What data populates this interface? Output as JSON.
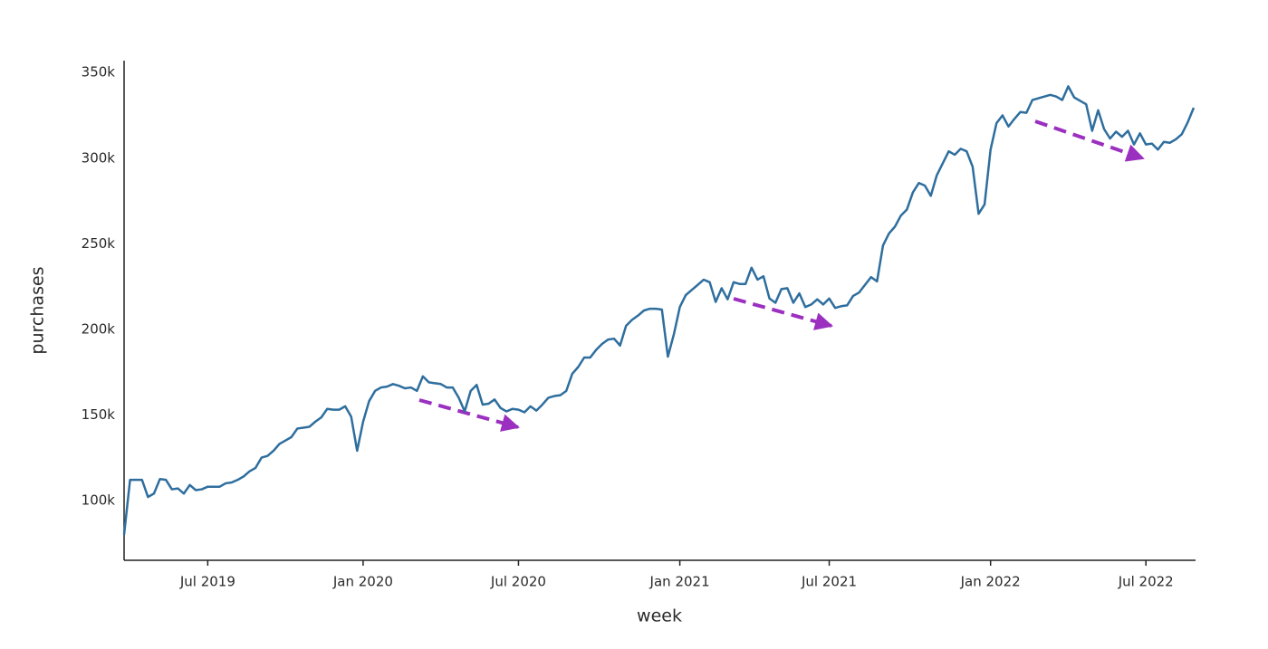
{
  "chart_data": {
    "type": "line",
    "x_label": "week",
    "y_label": "purchases",
    "categories": [
      null,
      null,
      null,
      null,
      null,
      null,
      null,
      null,
      null,
      null,
      null,
      null,
      null,
      null,
      "Jul 2019",
      null,
      null,
      null,
      null,
      null,
      null,
      null,
      null,
      null,
      null,
      null,
      null,
      null,
      null,
      null,
      null,
      null,
      null,
      null,
      null,
      null,
      null,
      null,
      null,
      null,
      "Jan 2020",
      null,
      null,
      null,
      null,
      null,
      null,
      null,
      null,
      null,
      null,
      null,
      null,
      null,
      null,
      null,
      null,
      null,
      null,
      null,
      null,
      null,
      null,
      null,
      null,
      null,
      "Jul 2020",
      null,
      null,
      null,
      null,
      null,
      null,
      null,
      null,
      null,
      null,
      null,
      null,
      null,
      null,
      null,
      null,
      null,
      null,
      null,
      null,
      null,
      null,
      null,
      null,
      null,
      null,
      "Jan 2021",
      null,
      null,
      null,
      null,
      null,
      null,
      null,
      null,
      null,
      null,
      null,
      null,
      null,
      null,
      null,
      null,
      null,
      null,
      null,
      null,
      null,
      null,
      null,
      null,
      "Jul 2021",
      null,
      null,
      null,
      null,
      null,
      null,
      null,
      null,
      null,
      null,
      null,
      null,
      null,
      null,
      null,
      null,
      null,
      null,
      null,
      null,
      null,
      null,
      null,
      null,
      null,
      null,
      "Jan 2022",
      null,
      null,
      null,
      null,
      null,
      null,
      null,
      null,
      null,
      null,
      null,
      null,
      null,
      null,
      null,
      null,
      null,
      null,
      null,
      null,
      null,
      null,
      null,
      null,
      null,
      "Jul 2022",
      null,
      null,
      null,
      null,
      null,
      null,
      null,
      null
    ],
    "values": [
      80000,
      112000,
      112000,
      112000,
      102000,
      104000,
      112500,
      112000,
      106500,
      107000,
      104000,
      109000,
      106000,
      106500,
      108000,
      108000,
      108000,
      110000,
      110500,
      112000,
      114000,
      117000,
      119000,
      125000,
      126000,
      129000,
      133000,
      135000,
      137000,
      142000,
      142500,
      143000,
      146000,
      148500,
      153500,
      153000,
      153000,
      155000,
      149000,
      129000,
      146000,
      158000,
      164000,
      166000,
      166500,
      168000,
      167000,
      165500,
      166000,
      164000,
      172500,
      169000,
      168500,
      168000,
      166000,
      166000,
      160000,
      152000,
      164000,
      167500,
      156000,
      156500,
      159000,
      154000,
      152000,
      153500,
      153000,
      151500,
      155000,
      152500,
      156000,
      160000,
      161000,
      161500,
      164000,
      174000,
      178000,
      183500,
      183500,
      188000,
      191500,
      194000,
      194500,
      190500,
      202000,
      205500,
      208000,
      211000,
      212000,
      212000,
      211500,
      184000,
      197000,
      213000,
      220000,
      223000,
      226000,
      229000,
      227500,
      216000,
      224000,
      217500,
      227500,
      226500,
      226500,
      236000,
      229000,
      231000,
      218000,
      215500,
      223500,
      224000,
      215500,
      221000,
      213000,
      214500,
      217500,
      214500,
      218000,
      212500,
      213500,
      214000,
      219500,
      221500,
      226000,
      230500,
      228000,
      249000,
      256000,
      260000,
      266500,
      270000,
      280000,
      285500,
      284000,
      278000,
      290000,
      297000,
      304000,
      302000,
      305500,
      304000,
      295000,
      267500,
      273000,
      305000,
      320500,
      325000,
      318500,
      323000,
      327000,
      326500,
      334000,
      335000,
      336000,
      337000,
      336000,
      334000,
      342000,
      335500,
      333500,
      331500,
      316000,
      328000,
      317000,
      311500,
      315500,
      312500,
      316000,
      308000,
      314500,
      308000,
      308500,
      305000,
      309500,
      309000,
      311000,
      314000,
      321000,
      329500
    ],
    "color": "#2e6e9e",
    "ylim": [
      65000,
      357000
    ],
    "yticks": [
      {
        "value": 100000,
        "label": "100k"
      },
      {
        "value": 150000,
        "label": "150k"
      },
      {
        "value": 200000,
        "label": "200k"
      },
      {
        "value": 250000,
        "label": "250k"
      },
      {
        "value": 300000,
        "label": "300k"
      },
      {
        "value": 350000,
        "label": "350k"
      }
    ],
    "grid": false
  }
}
